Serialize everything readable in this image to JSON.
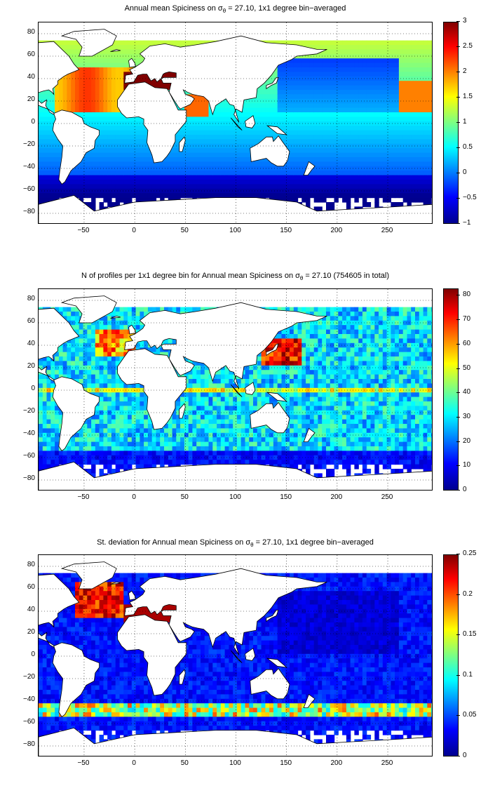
{
  "panels": [
    {
      "title_pre": "Annual mean Spiciness on σ",
      "title_sub": "θ",
      "title_post": " = 27.10, 1x1 degree bin−averaged",
      "yticks": [
        "80",
        "60",
        "40",
        "20",
        "0",
        "−20",
        "−40",
        "−60",
        "−80"
      ],
      "xticks": [
        "−50",
        "0",
        "50",
        "100",
        "150",
        "200",
        "250"
      ],
      "colorbar": {
        "min": -1,
        "max": 3,
        "ticks": [
          "3",
          "2.5",
          "2",
          "1.5",
          "1",
          "0.5",
          "0",
          "−0.5",
          "−1"
        ]
      }
    },
    {
      "title_pre": "N of profiles per 1x1 degree bin for Annual mean Spiciness on σ",
      "title_sub": "θ",
      "title_post": " = 27.10 (754605 in total)",
      "yticks": [
        "80",
        "60",
        "40",
        "20",
        "0",
        "−20",
        "−40",
        "−60",
        "−80"
      ],
      "xticks": [
        "−50",
        "0",
        "50",
        "100",
        "150",
        "200",
        "250"
      ],
      "colorbar": {
        "min": 0,
        "max": 83,
        "ticks": [
          "80",
          "70",
          "60",
          "50",
          "40",
          "30",
          "20",
          "10",
          "0"
        ]
      }
    },
    {
      "title_pre": "St. deviation for Annual mean Spiciness on σ",
      "title_sub": "θ",
      "title_post": " = 27.10, 1x1 degree bin−averaged",
      "yticks": [
        "80",
        "60",
        "40",
        "20",
        "0",
        "−20",
        "−40",
        "−60",
        "−80"
      ],
      "xticks": [
        "−50",
        "0",
        "50",
        "100",
        "150",
        "200",
        "250"
      ],
      "colorbar": {
        "min": 0,
        "max": 0.25,
        "ticks": [
          "0.25",
          "0.2",
          "0.15",
          "0.1",
          "0.05",
          "0"
        ]
      }
    }
  ],
  "colors": {
    "jet": [
      "#00008f",
      "#0000ff",
      "#00ffff",
      "#ffff00",
      "#ff0000",
      "#800000"
    ],
    "land": "#ffffff",
    "grid": "#000000"
  }
}
